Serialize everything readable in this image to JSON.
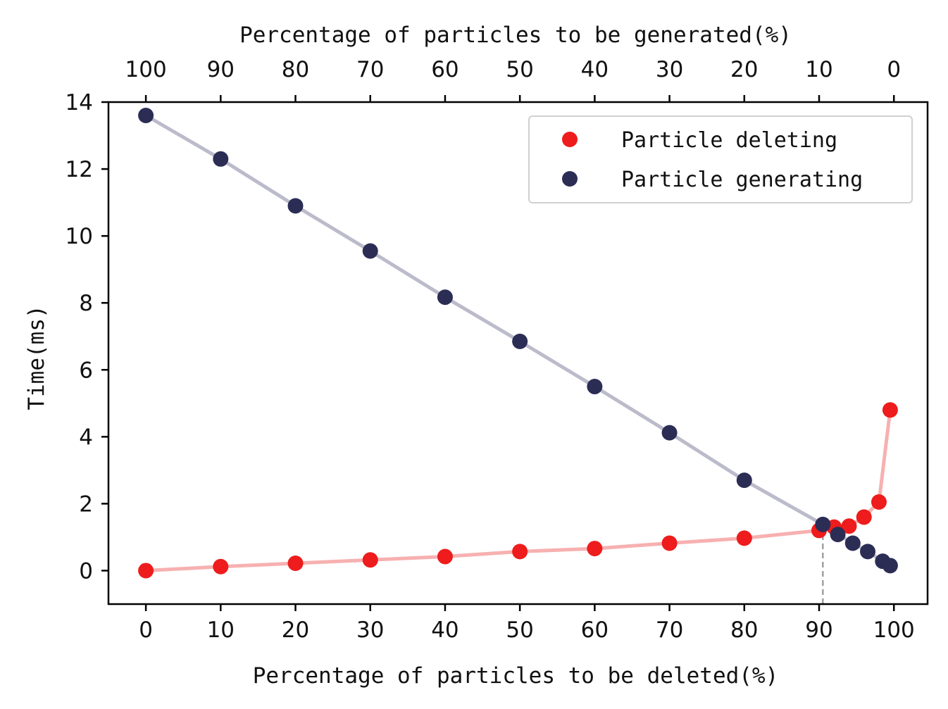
{
  "chart_data": {
    "type": "line",
    "xlabel": "Percentage of particles to be deleted(%)",
    "x2label": "Percentage of particles to be generated(%)",
    "ylabel": "Time(ms)",
    "xlim": [
      -5,
      104.5
    ],
    "ylim": [
      -1,
      14
    ],
    "xticks": [
      0,
      10,
      20,
      30,
      40,
      50,
      60,
      70,
      80,
      90,
      100
    ],
    "x2ticks": [
      100,
      90,
      80,
      70,
      60,
      50,
      40,
      30,
      20,
      10,
      0
    ],
    "yticks": [
      0,
      2,
      4,
      6,
      8,
      10,
      12,
      14
    ],
    "grid": false,
    "legend_position": "top-right",
    "crossover_x": 90.5,
    "series": [
      {
        "name": "Particle deleting",
        "color": "#ee1c1c",
        "line_color": "#f7b0b0",
        "x": [
          0,
          10,
          20,
          30,
          40,
          50,
          60,
          70,
          80,
          90,
          92,
          94,
          96,
          98,
          99.5
        ],
        "y": [
          0,
          0.12,
          0.22,
          0.32,
          0.42,
          0.57,
          0.66,
          0.82,
          0.97,
          1.2,
          1.3,
          1.33,
          1.6,
          2.05,
          4.8
        ]
      },
      {
        "name": "Particle generating",
        "color": "#2b2d55",
        "line_color": "#bbbbcb",
        "x": [
          0,
          10,
          20,
          30,
          40,
          50,
          60,
          70,
          80,
          90.5,
          92.5,
          94.5,
          96.5,
          98.5,
          99.5
        ],
        "y": [
          13.6,
          12.3,
          10.9,
          9.55,
          8.17,
          6.85,
          5.5,
          4.12,
          2.7,
          1.38,
          1.08,
          0.82,
          0.57,
          0.28,
          0.15
        ]
      }
    ]
  }
}
